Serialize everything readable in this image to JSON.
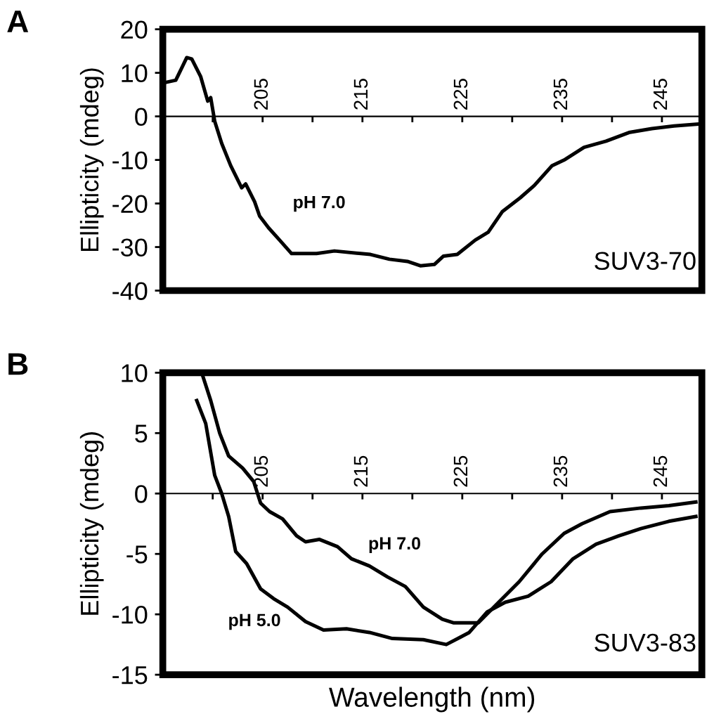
{
  "chart_data": [
    {
      "type": "line",
      "ylabel": "Ellipticity (mdeg)",
      "annotations": [
        "A",
        "SUV3-70",
        "pH 7.0"
      ],
      "xlim": [
        195,
        249
      ],
      "xticks": [
        {
          "value": 200,
          "label": null
        },
        205,
        {
          "value": 210,
          "label": null
        },
        215,
        {
          "value": 220,
          "label": null
        },
        225,
        {
          "value": 230,
          "label": null
        },
        235,
        {
          "value": 240,
          "label": null
        },
        245
      ],
      "ylim": [
        -40,
        20
      ],
      "yticks": [
        -40,
        -30,
        -20,
        -10,
        0,
        10,
        20
      ],
      "grid": false,
      "legend": false,
      "series": [
        {
          "color": "#000000",
          "x": [
            195.1,
            196.3,
            197.4,
            197.9,
            198.8,
            199.5,
            199.8,
            200.2,
            200.9,
            201.8,
            202.9,
            203.3,
            204.2,
            204.7,
            205.6,
            206.7,
            207.9,
            210.4,
            212.2,
            215.8,
            217.7,
            219.5,
            220.8,
            222.2,
            223.1,
            224.5,
            226.3,
            227.6,
            229.0,
            230.8,
            232.2,
            234.0,
            235.3,
            237.2,
            239.4,
            241.7,
            244.0,
            246.2,
            248.5
          ],
          "values": [
            7.7,
            8.3,
            13.5,
            13.2,
            9.1,
            3.5,
            4.3,
            -1.1,
            -6.2,
            -11.3,
            -16.4,
            -15.5,
            -19.6,
            -22.9,
            -25.6,
            -28.4,
            -31.5,
            -31.5,
            -30.9,
            -31.7,
            -32.8,
            -33.3,
            -34.3,
            -34.0,
            -32.1,
            -31.7,
            -28.4,
            -26.6,
            -21.9,
            -18.7,
            -15.9,
            -11.3,
            -9.9,
            -7.1,
            -5.7,
            -3.7,
            -2.8,
            -2.2,
            -1.8
          ]
        }
      ]
    },
    {
      "type": "line",
      "xlabel": "Wavelength (nm)",
      "ylabel": "Ellipticity (mdeg)",
      "annotations": [
        "B",
        "SUV3-83",
        "pH 7.0",
        "pH 5.0"
      ],
      "xlim": [
        195,
        249
      ],
      "xticks": [
        {
          "value": 200,
          "label": null
        },
        205,
        {
          "value": 210,
          "label": null
        },
        215,
        {
          "value": 220,
          "label": null
        },
        225,
        {
          "value": 230,
          "label": null
        },
        235,
        {
          "value": 240,
          "label": null
        },
        245
      ],
      "ylim": [
        -15,
        10
      ],
      "yticks": [
        -15,
        -10,
        -5,
        0,
        5,
        10
      ],
      "grid": false,
      "legend": false,
      "series": [
        {
          "color": "#000000",
          "x": [
            198.9,
            199.8,
            200.7,
            201.6,
            203.0,
            204.1,
            204.8,
            205.7,
            207.0,
            208.4,
            209.3,
            210.7,
            212.5,
            213.9,
            215.7,
            217.5,
            219.3,
            221.1,
            223.0,
            224.1,
            226.6,
            228.4,
            230.7,
            233.0,
            235.2,
            237.0,
            239.8,
            242.9,
            245.7,
            248.4
          ],
          "values": [
            10,
            7.7,
            5.0,
            3.1,
            2.1,
            1.0,
            -0.8,
            -1.5,
            -2.1,
            -3.5,
            -4.0,
            -3.8,
            -4.4,
            -5.4,
            -6.0,
            -6.9,
            -7.7,
            -9.4,
            -10.4,
            -10.7,
            -10.7,
            -9.2,
            -7.3,
            -5.0,
            -3.3,
            -2.5,
            -1.5,
            -1.2,
            -1.0,
            -0.7
          ]
        },
        {
          "color": "#000000",
          "x": [
            198.4,
            199.3,
            200.2,
            200.9,
            201.6,
            202.3,
            203.4,
            204.8,
            206.1,
            207.5,
            209.3,
            211.1,
            213.4,
            215.7,
            218.0,
            221.1,
            223.4,
            224.8,
            225.7,
            227.5,
            229.3,
            231.6,
            233.9,
            236.1,
            238.4,
            240.7,
            242.9,
            245.7,
            248.4
          ],
          "values": [
            7.7,
            5.8,
            1.5,
            0,
            -1.9,
            -4.8,
            -5.8,
            -7.9,
            -8.7,
            -9.4,
            -10.6,
            -11.3,
            -11.2,
            -11.5,
            -12.0,
            -12.1,
            -12.5,
            -11.9,
            -11.5,
            -9.8,
            -9.0,
            -8.5,
            -7.3,
            -5.4,
            -4.2,
            -3.5,
            -2.9,
            -2.3,
            -1.9
          ]
        }
      ]
    }
  ]
}
